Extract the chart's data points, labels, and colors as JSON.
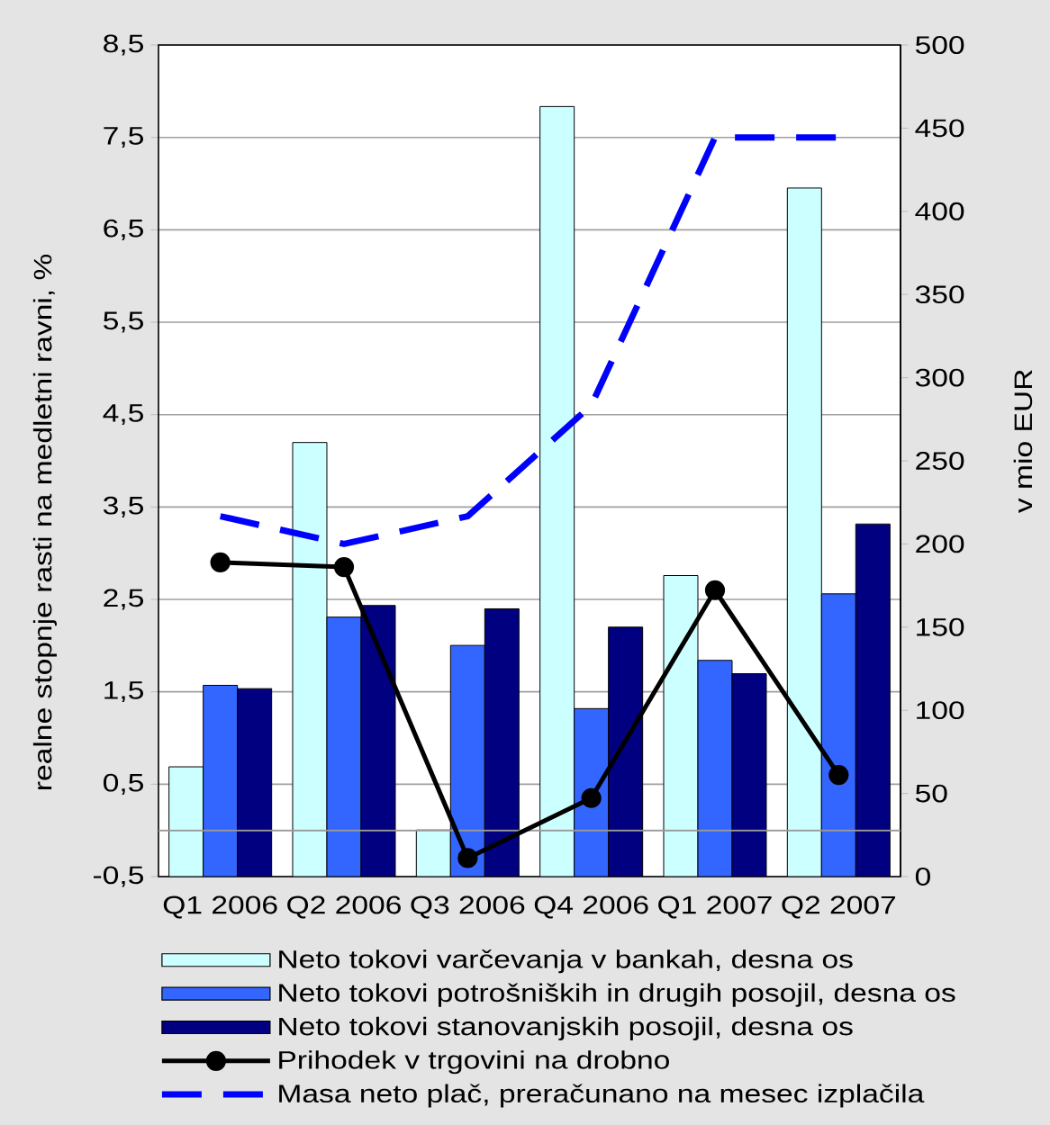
{
  "chart_data": {
    "type": "bar",
    "categories": [
      "Q1 2006",
      "Q2 2006",
      "Q3 2006",
      "Q4 2006",
      "Q1 2007",
      "Q2 2007"
    ],
    "ylabel": "realne stopnje rasti na medletni ravni, %",
    "y2label": "v mio EUR",
    "ylim": [
      -0.5,
      8.5
    ],
    "yticks": [
      {
        "value": -0.5,
        "label": "-0,5"
      },
      {
        "value": 0.5,
        "label": "0,5"
      },
      {
        "value": 1.5,
        "label": "1,5"
      },
      {
        "value": 2.5,
        "label": "2,5"
      },
      {
        "value": 3.5,
        "label": "3,5"
      },
      {
        "value": 4.5,
        "label": "4,5"
      },
      {
        "value": 5.5,
        "label": "5,5"
      },
      {
        "value": 6.5,
        "label": "6,5"
      },
      {
        "value": 7.5,
        "label": "7,5"
      },
      {
        "value": 8.5,
        "label": "8,5"
      }
    ],
    "y2lim": [
      0,
      500
    ],
    "y2ticks": [
      0,
      50,
      100,
      150,
      200,
      250,
      300,
      350,
      400,
      450,
      500
    ],
    "series": [
      {
        "name": "Neto tokovi varčevanja v bankah, desna os",
        "axis": "y2",
        "color": "#ccffff",
        "values": [
          66,
          261,
          28,
          463,
          181,
          414
        ]
      },
      {
        "name": "Neto tokovi potrošniških in drugih posojil, desna os",
        "axis": "y2",
        "color": "#3366ff",
        "values": [
          115,
          156,
          139,
          101,
          130,
          170
        ]
      },
      {
        "name": "Neto tokovi stanovanjskih posojil, desna os",
        "axis": "y2",
        "color": "#000080",
        "values": [
          113,
          163,
          161,
          150,
          122,
          212
        ]
      },
      {
        "name": "Prihodek v trgovini na drobno",
        "type": "line",
        "color": "#000000",
        "marker": "circle",
        "line_style": "solid",
        "values": [
          2.9,
          2.85,
          -0.3,
          0.35,
          2.6,
          0.6
        ]
      },
      {
        "name": "Masa neto plač, preračunano na mesec izplačila",
        "type": "line",
        "color": "#0000ff",
        "marker": "none",
        "line_style": "dashed",
        "values": [
          3.4,
          3.1,
          3.4,
          4.6,
          7.5,
          7.5
        ]
      }
    ],
    "grid": "y",
    "legend": "bottom",
    "ref_lines": [
      {
        "axis": "y",
        "value": 0,
        "color": "#999999"
      }
    ]
  }
}
